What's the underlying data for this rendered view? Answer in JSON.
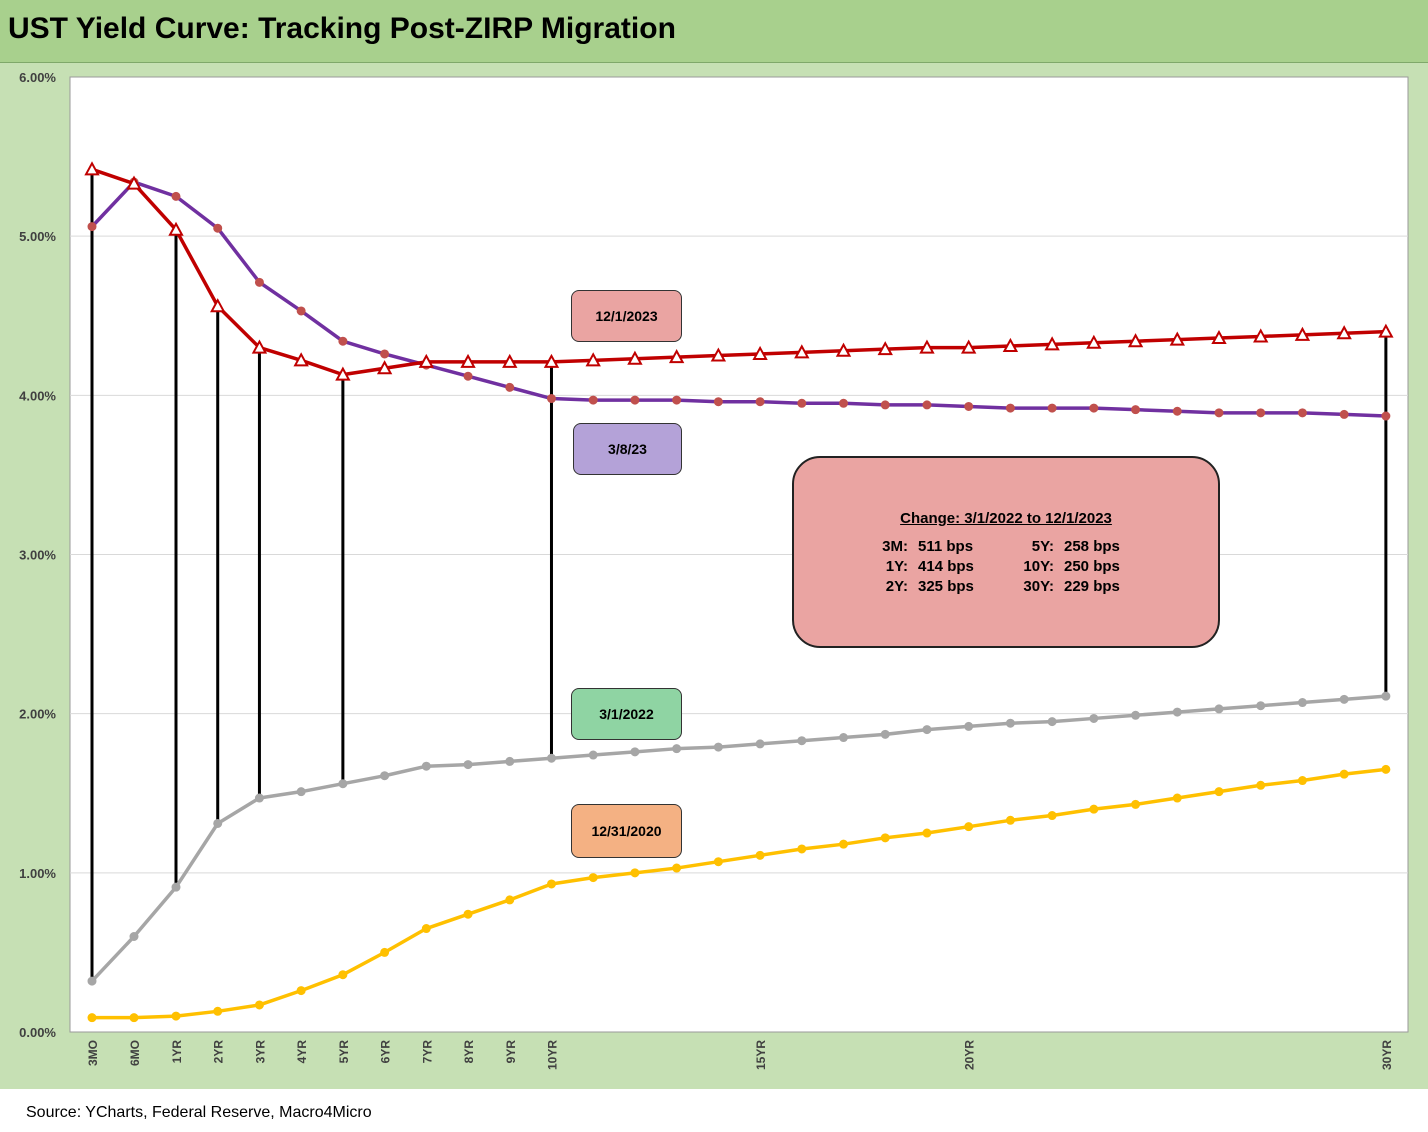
{
  "title": "UST Yield Curve: Tracking Post-ZIRP Migration",
  "source": "Source: YCharts, Federal Reserve, Macro4Micro",
  "chart_data": {
    "type": "line",
    "ylim": [
      0,
      6
    ],
    "yticks": [
      "0.00%",
      "1.00%",
      "2.00%",
      "3.00%",
      "4.00%",
      "5.00%",
      "6.00%"
    ],
    "x": [
      0.25,
      0.5,
      1,
      2,
      3,
      4,
      5,
      6,
      7,
      8,
      9,
      10,
      11,
      12,
      13,
      14,
      15,
      16,
      17,
      18,
      19,
      20,
      21,
      22,
      23,
      24,
      25,
      26,
      27,
      28,
      29,
      30
    ],
    "x_tick_labels": [
      {
        "x": 0.25,
        "label": "3MO"
      },
      {
        "x": 0.5,
        "label": "6MO"
      },
      {
        "x": 1,
        "label": "1YR"
      },
      {
        "x": 2,
        "label": "2YR"
      },
      {
        "x": 3,
        "label": "3YR"
      },
      {
        "x": 4,
        "label": "4YR"
      },
      {
        "x": 5,
        "label": "5YR"
      },
      {
        "x": 6,
        "label": "6YR"
      },
      {
        "x": 7,
        "label": "7YR"
      },
      {
        "x": 8,
        "label": "8YR"
      },
      {
        "x": 9,
        "label": "9YR"
      },
      {
        "x": 10,
        "label": "10YR"
      },
      {
        "x": 15,
        "label": "15YR"
      },
      {
        "x": 20,
        "label": "20YR"
      },
      {
        "x": 30,
        "label": "30YR"
      }
    ],
    "series": [
      {
        "name": "12/1/2023",
        "color": "#c00000",
        "marker": "triangle",
        "values": [
          5.42,
          5.33,
          5.04,
          4.56,
          4.3,
          4.22,
          4.13,
          4.17,
          4.21,
          4.21,
          4.21,
          4.21,
          4.22,
          4.23,
          4.24,
          4.25,
          4.26,
          4.27,
          4.28,
          4.29,
          4.3,
          4.3,
          4.31,
          4.32,
          4.33,
          4.34,
          4.35,
          4.36,
          4.37,
          4.38,
          4.39,
          4.4
        ]
      },
      {
        "name": "3/8/23",
        "color": "#7030a0",
        "marker": "circle",
        "values": [
          5.06,
          5.34,
          5.25,
          5.05,
          4.71,
          4.53,
          4.34,
          4.26,
          4.19,
          4.12,
          4.05,
          3.98,
          3.97,
          3.97,
          3.97,
          3.96,
          3.96,
          3.95,
          3.95,
          3.94,
          3.94,
          3.93,
          3.92,
          3.92,
          3.92,
          3.91,
          3.9,
          3.89,
          3.89,
          3.89,
          3.88,
          3.87
        ]
      },
      {
        "name": "3/1/2022",
        "color": "#a6a6a6",
        "marker": "circle",
        "values": [
          0.32,
          0.6,
          0.91,
          1.31,
          1.47,
          1.51,
          1.56,
          1.61,
          1.67,
          1.68,
          1.7,
          1.72,
          1.74,
          1.76,
          1.78,
          1.79,
          1.81,
          1.83,
          1.85,
          1.87,
          1.9,
          1.92,
          1.94,
          1.95,
          1.97,
          1.99,
          2.01,
          2.03,
          2.05,
          2.07,
          2.09,
          2.11
        ]
      },
      {
        "name": "12/31/2020",
        "color": "#ffc000",
        "marker": "circle",
        "values": [
          0.09,
          0.09,
          0.1,
          0.13,
          0.17,
          0.26,
          0.36,
          0.5,
          0.65,
          0.74,
          0.83,
          0.93,
          0.97,
          1.0,
          1.03,
          1.07,
          1.11,
          1.15,
          1.18,
          1.22,
          1.25,
          1.29,
          1.33,
          1.36,
          1.4,
          1.43,
          1.47,
          1.51,
          1.55,
          1.58,
          1.62,
          1.65
        ]
      }
    ],
    "change_bars": {
      "from": "3/1/2022",
      "to": "12/1/2023",
      "x": [
        0.25,
        1,
        2,
        3,
        5,
        10,
        30
      ]
    },
    "grid": "horizontal",
    "series_labels": [
      {
        "text": "12/1/2023",
        "color": "#eaa4a2"
      },
      {
        "text": "3/8/23",
        "color": "#b4a2d8"
      },
      {
        "text": "3/1/2022",
        "color": "#8fd4a3"
      },
      {
        "text": "12/31/2020",
        "color": "#f4b183"
      }
    ],
    "annotation": {
      "title": "Change: 3/1/2022 to 12/1/2023",
      "rows": [
        {
          "a_label": "3M:",
          "a_value": "511 bps",
          "b_label": "5Y:",
          "b_value": "258 bps"
        },
        {
          "a_label": "1Y:",
          "a_value": "414 bps",
          "b_label": "10Y:",
          "b_value": "250 bps"
        },
        {
          "a_label": "2Y:",
          "a_value": "325 bps",
          "b_label": "30Y:",
          "b_value": "229 bps"
        }
      ]
    }
  }
}
